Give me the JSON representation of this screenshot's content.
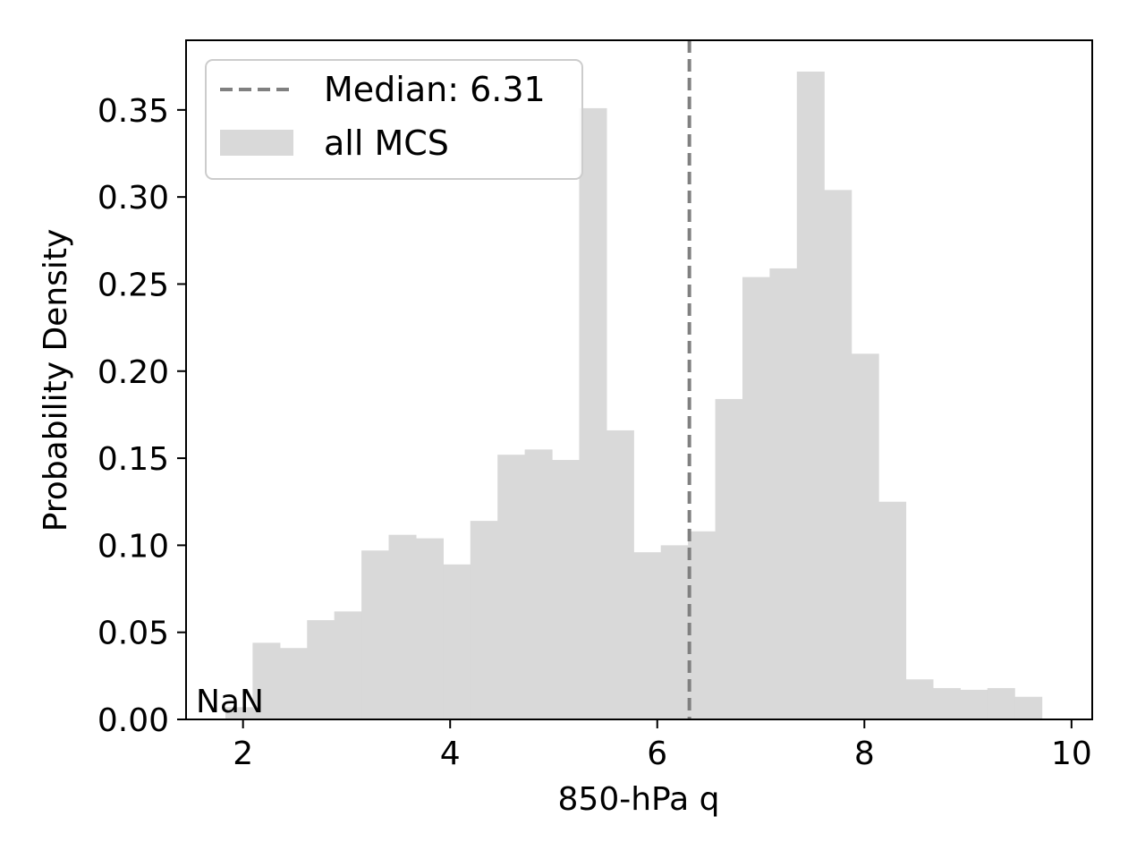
{
  "chart_data": {
    "type": "bar",
    "title": "",
    "xlabel": "850-hPa q",
    "ylabel": "Probability Density",
    "xlim": [
      1.45,
      10.2
    ],
    "ylim": [
      0,
      0.39
    ],
    "xticks": [
      2,
      4,
      6,
      8,
      10
    ],
    "xtick_labels": [
      "2",
      "4",
      "6",
      "8",
      "10"
    ],
    "yticks": [
      0.0,
      0.05,
      0.1,
      0.15,
      0.2,
      0.25,
      0.3,
      0.35
    ],
    "ytick_labels": [
      "0.00",
      "0.05",
      "0.10",
      "0.15",
      "0.20",
      "0.25",
      "0.30",
      "0.35"
    ],
    "grid": false,
    "legend_position": "top-left",
    "annotation": "NaN",
    "median": {
      "label": "Median: 6.31",
      "value": 6.31,
      "color": "#808080"
    },
    "series": [
      {
        "name": "all MCS",
        "color": "#d9d9d9",
        "bin_edges": [
          1.83,
          2.0927,
          2.3555,
          2.6183,
          2.881,
          3.1438,
          3.4066,
          3.6693,
          3.9321,
          4.1948,
          4.4576,
          4.7204,
          4.9831,
          5.2459,
          5.5087,
          5.7714,
          6.0342,
          6.297,
          6.5597,
          6.8225,
          7.0853,
          7.348,
          7.6108,
          7.8736,
          8.1363,
          8.3991,
          8.6618,
          8.9246,
          9.1874,
          9.4501,
          9.7129
        ],
        "values": [
          0.007,
          0.044,
          0.041,
          0.057,
          0.062,
          0.097,
          0.106,
          0.104,
          0.089,
          0.114,
          0.152,
          0.155,
          0.149,
          0.351,
          0.166,
          0.096,
          0.1,
          0.108,
          0.184,
          0.254,
          0.259,
          0.372,
          0.304,
          0.21,
          0.125,
          0.023,
          0.018,
          0.017,
          0.018,
          0.013
        ]
      }
    ]
  }
}
